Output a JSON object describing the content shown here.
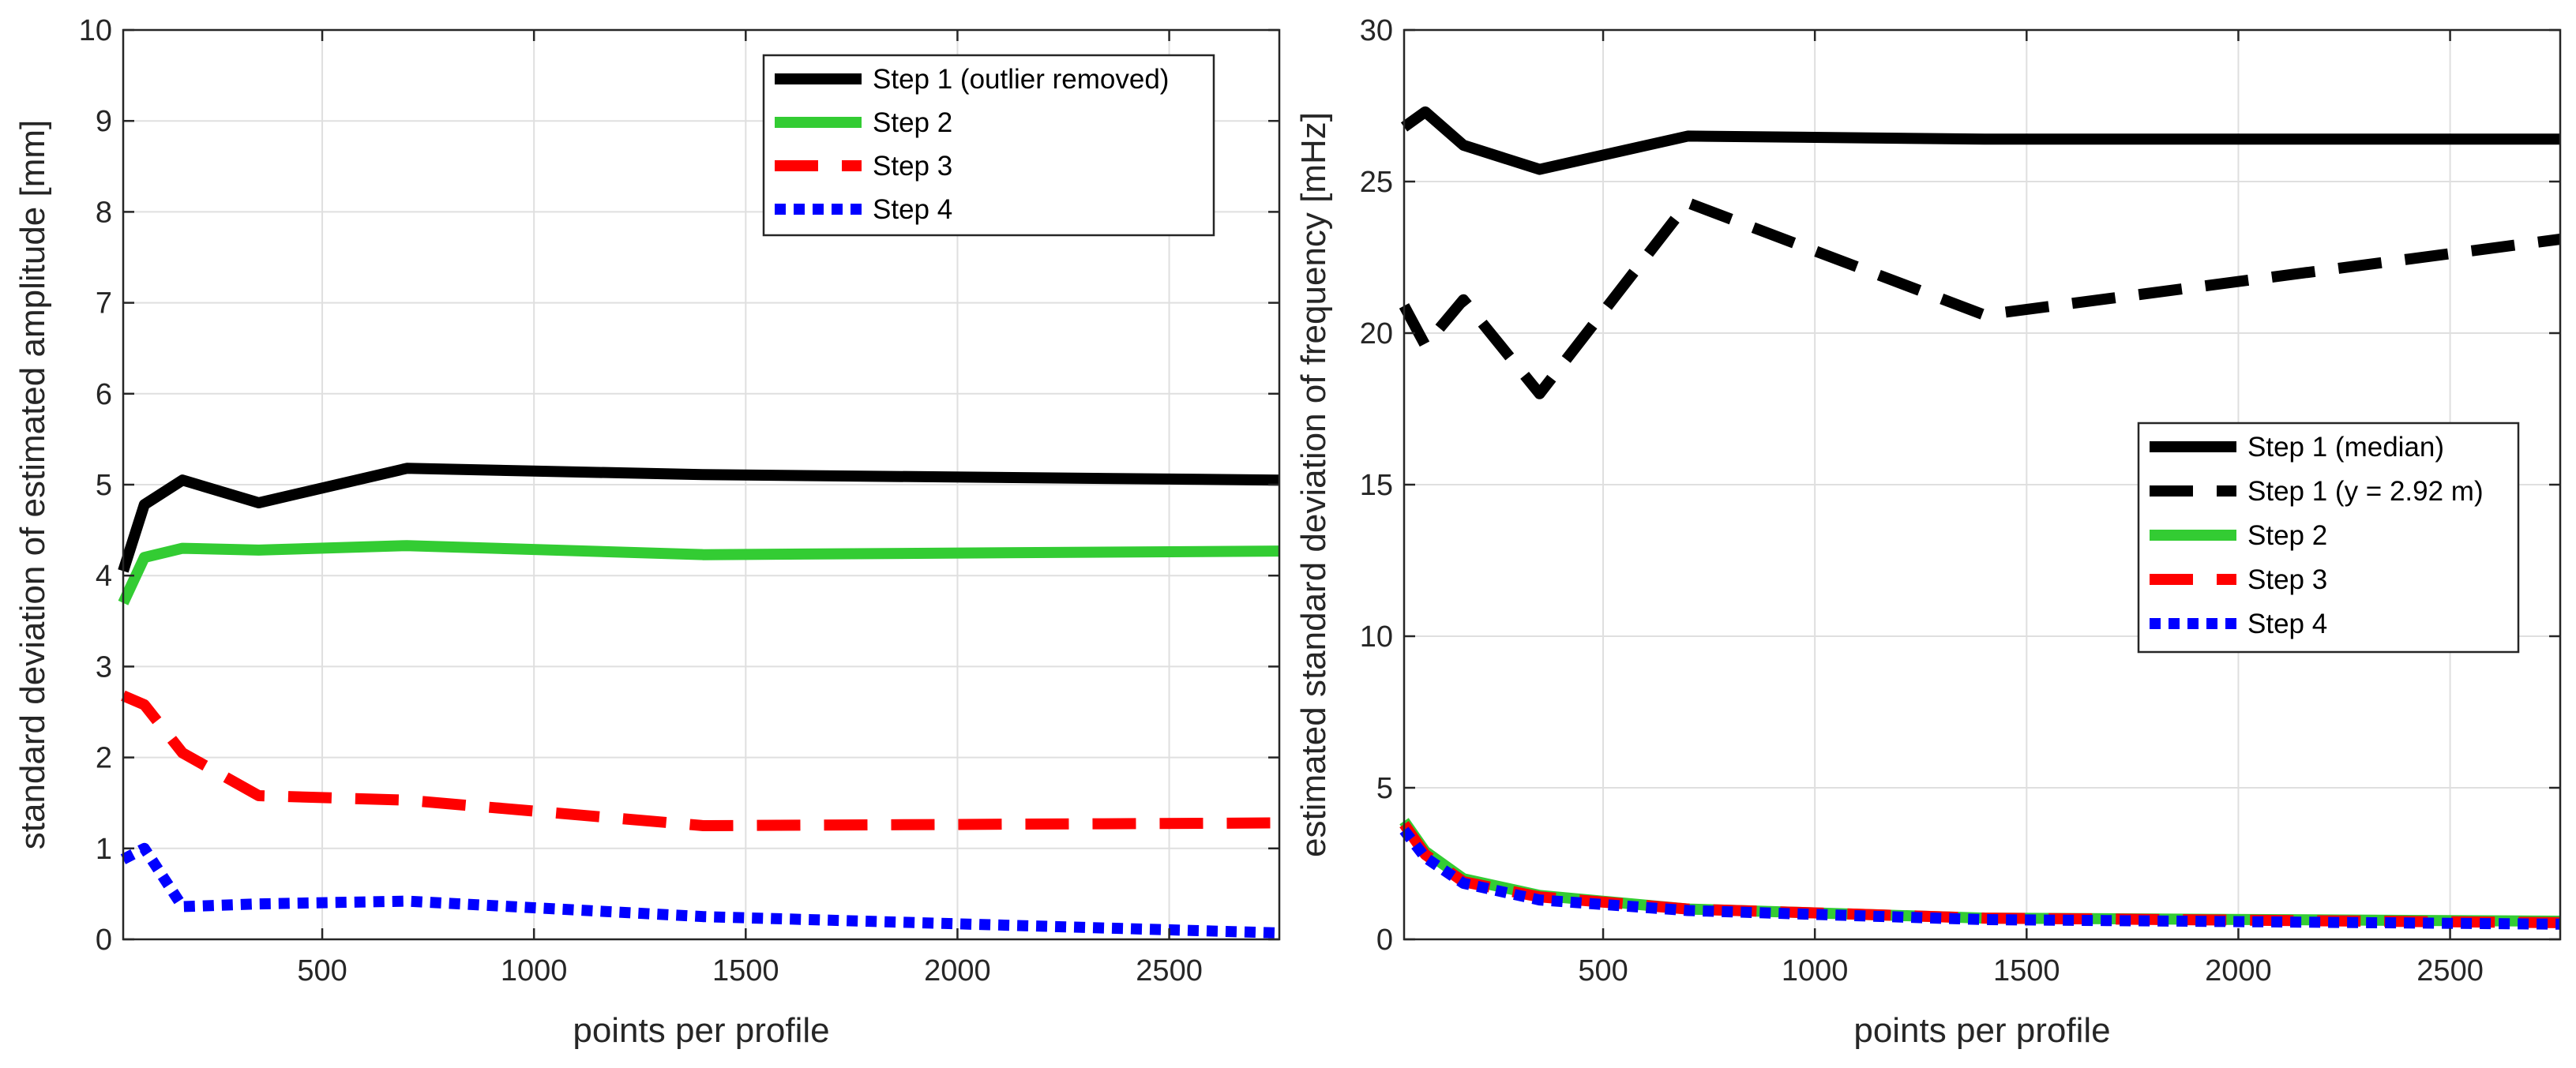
{
  "chart_data": [
    {
      "type": "line",
      "xlabel": "points per profile",
      "ylabel": "standard deviation of estimated amplitude [mm]",
      "xlim": [
        30,
        2760
      ],
      "ylim": [
        0,
        10
      ],
      "xticks": [
        500,
        1000,
        1500,
        2000,
        2500
      ],
      "yticks": [
        0,
        1,
        2,
        3,
        4,
        5,
        6,
        7,
        8,
        9,
        10
      ],
      "grid": true,
      "legend_position": "top-right",
      "series": [
        {
          "name": "Step 1 (outlier removed)",
          "color": "#000000",
          "style": "solid",
          "x": [
            30,
            80,
            170,
            350,
            700,
            1400,
            2760
          ],
          "y": [
            4.05,
            4.78,
            5.05,
            4.8,
            5.18,
            5.11,
            5.05
          ]
        },
        {
          "name": "Step 2",
          "color": "#33cc33",
          "style": "solid",
          "x": [
            30,
            80,
            170,
            350,
            700,
            1400,
            2760
          ],
          "y": [
            3.7,
            4.2,
            4.3,
            4.28,
            4.33,
            4.23,
            4.27
          ]
        },
        {
          "name": "Step 3",
          "color": "#ff0000",
          "style": "dashed",
          "x": [
            30,
            80,
            170,
            350,
            700,
            1400,
            2760
          ],
          "y": [
            2.68,
            2.58,
            2.05,
            1.58,
            1.53,
            1.25,
            1.28
          ]
        },
        {
          "name": "Step 4",
          "color": "#0000ff",
          "style": "dotted",
          "x": [
            30,
            80,
            170,
            350,
            700,
            1400,
            2760
          ],
          "y": [
            0.88,
            1.0,
            0.36,
            0.39,
            0.42,
            0.25,
            0.07
          ]
        }
      ]
    },
    {
      "type": "line",
      "xlabel": "points per profile",
      "ylabel": "estimated standard deviation of frequency [mHz]",
      "xlim": [
        30,
        2760
      ],
      "ylim": [
        0,
        30
      ],
      "xticks": [
        500,
        1000,
        1500,
        2000,
        2500
      ],
      "yticks": [
        0,
        5,
        10,
        15,
        20,
        25,
        30
      ],
      "grid": true,
      "legend_position": "middle-right",
      "series": [
        {
          "name": "Step 1 (median)",
          "color": "#000000",
          "style": "solid",
          "x": [
            30,
            80,
            170,
            350,
            700,
            1400,
            2760
          ],
          "y": [
            26.8,
            27.3,
            26.2,
            25.4,
            26.5,
            26.4,
            26.4
          ]
        },
        {
          "name": "Step 1 (y = 2.92 m)",
          "color": "#000000",
          "style": "dashed",
          "x": [
            30,
            80,
            170,
            350,
            700,
            1400,
            2760
          ],
          "y": [
            20.9,
            19.6,
            21.1,
            18.0,
            24.3,
            20.6,
            23.1
          ]
        },
        {
          "name": "Step 2",
          "color": "#33cc33",
          "style": "solid",
          "x": [
            30,
            80,
            170,
            350,
            700,
            1400,
            2760
          ],
          "y": [
            3.9,
            2.9,
            2.0,
            1.45,
            1.0,
            0.7,
            0.6
          ]
        },
        {
          "name": "Step 3",
          "color": "#ff0000",
          "style": "dashed",
          "x": [
            30,
            80,
            170,
            350,
            700,
            1400,
            2760
          ],
          "y": [
            3.8,
            2.8,
            1.9,
            1.4,
            1.0,
            0.7,
            0.55
          ]
        },
        {
          "name": "Step 4",
          "color": "#0000ff",
          "style": "dotted",
          "x": [
            30,
            80,
            170,
            350,
            700,
            1400,
            2760
          ],
          "y": [
            3.6,
            2.7,
            1.85,
            1.3,
            0.95,
            0.65,
            0.5
          ]
        }
      ]
    }
  ]
}
